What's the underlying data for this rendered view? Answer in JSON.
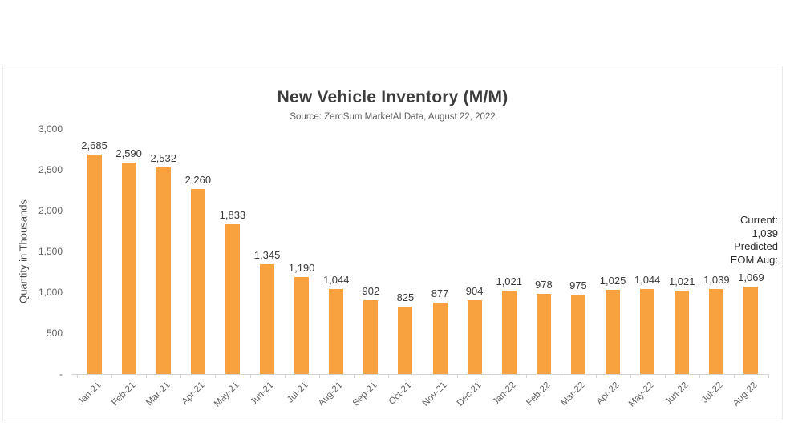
{
  "chart_data": {
    "type": "bar",
    "title": "New Vehicle Inventory (M/M)",
    "subtitle": "Source: ZeroSum MarketAI Data, August 22, 2022",
    "ylabel": "Quantity in Thousands",
    "xlabel": "",
    "ylim": [
      0,
      3000
    ],
    "ytick_interval": 500,
    "ytick_labels": [
      "-",
      "500",
      "1,000",
      "1,500",
      "2,000",
      "2,500",
      "3,000"
    ],
    "grid": false,
    "legend": "none",
    "bar_color": "#F7A23E",
    "categories": [
      "Jan-21",
      "Feb-21",
      "Mar-21",
      "Apr-21",
      "May-21",
      "Jun-21",
      "Jul-21",
      "Aug-21",
      "Sep-21",
      "Oct-21",
      "Nov-21",
      "Dec-21",
      "Jan-22",
      "Feb-22",
      "Mar-22",
      "Apr-22",
      "May-22",
      "Jun-22",
      "Jul-22",
      "Aug-22"
    ],
    "values": [
      2685,
      2590,
      2532,
      2260,
      1833,
      1345,
      1190,
      1044,
      902,
      825,
      877,
      904,
      1021,
      978,
      975,
      1025,
      1044,
      1021,
      1039,
      1069
    ],
    "value_labels": [
      "2,685",
      "2,590",
      "2,532",
      "2,260",
      "1,833",
      "1,345",
      "1,190",
      "1,044",
      "902",
      "825",
      "877",
      "904",
      "1,021",
      "978",
      "975",
      "1,025",
      "1,044",
      "1,021",
      "1,039",
      "1,069"
    ],
    "annotation": {
      "lines": [
        "Current:",
        "1,039",
        "Predicted",
        "EOM Aug:"
      ],
      "current": "1,039",
      "predicted_eom_aug": "1,069"
    }
  }
}
